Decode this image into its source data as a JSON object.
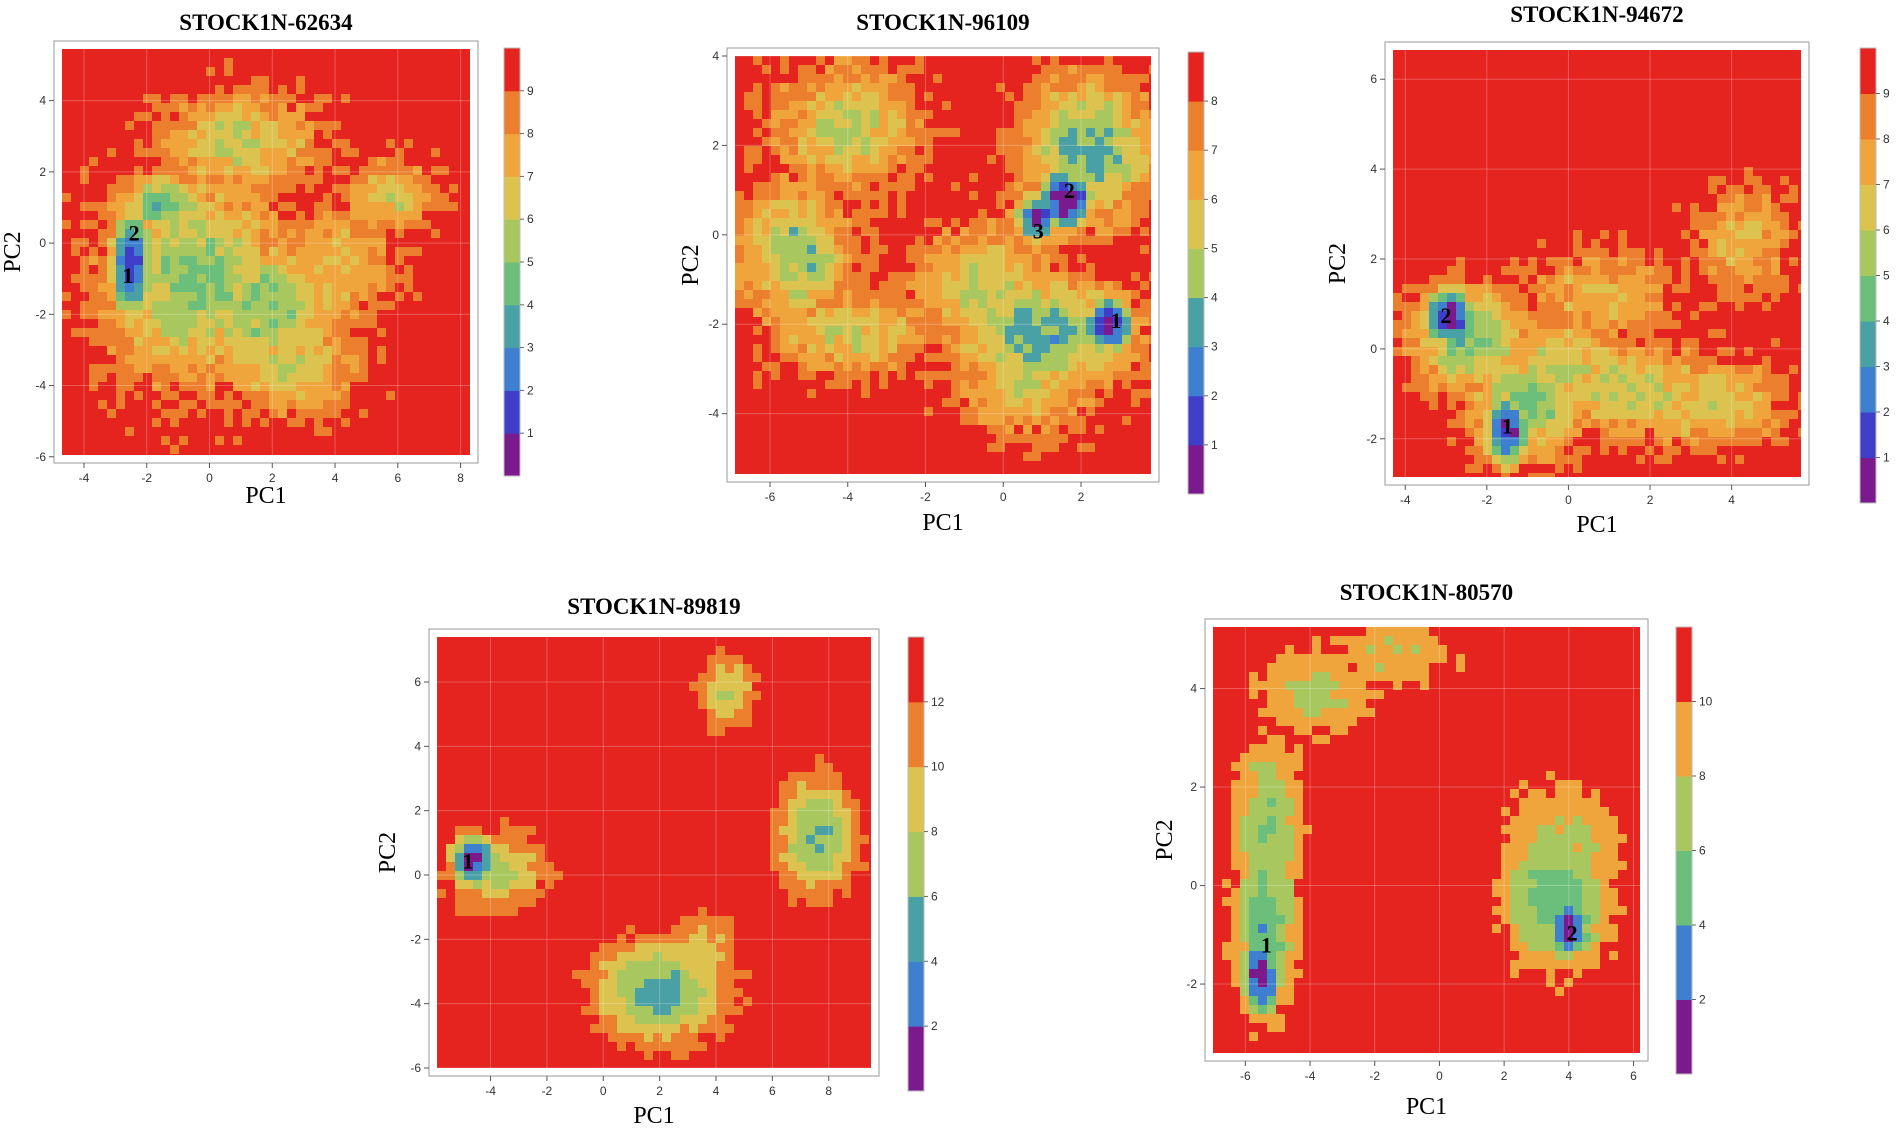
{
  "chart_data": [
    {
      "type": "heatmap",
      "title": "STOCK1N-62634",
      "xlabel": "PC1",
      "ylabel": "PC2",
      "xlim": [
        -4.7,
        8.3
      ],
      "ylim": [
        -5.95,
        5.45
      ],
      "xticks": [
        "-4",
        "-2",
        "0",
        "2",
        "4",
        "6",
        "8"
      ],
      "yticks": [
        "-6",
        "-4",
        "-2",
        "0",
        "2",
        "4"
      ],
      "colorbar": {
        "labels": [
          "1",
          "2",
          "3",
          "4",
          "5",
          "6",
          "7",
          "8",
          "9"
        ],
        "max": 10
      },
      "basins": [
        {
          "x": -2.5,
          "y": -0.6,
          "sx": 0.45,
          "sy": 1.1,
          "depth": 9.5
        },
        {
          "x": -1.5,
          "y": 1.1,
          "sx": 0.9,
          "sy": 0.6,
          "depth": 6.0
        },
        {
          "x": -0.5,
          "y": -1.0,
          "sx": 2.0,
          "sy": 2.0,
          "depth": 5.2
        },
        {
          "x": 1.8,
          "y": -1.8,
          "sx": 1.6,
          "sy": 1.4,
          "depth": 5.0
        },
        {
          "x": 2.6,
          "y": -3.4,
          "sx": 1.5,
          "sy": 1.0,
          "depth": 4.0
        },
        {
          "x": 1.0,
          "y": 2.8,
          "sx": 1.8,
          "sy": 1.0,
          "depth": 4.0
        },
        {
          "x": 5.8,
          "y": 1.3,
          "sx": 1.0,
          "sy": 0.7,
          "depth": 3.8
        },
        {
          "x": 4.2,
          "y": -0.6,
          "sx": 1.2,
          "sy": 1.2,
          "depth": 3.2
        }
      ],
      "minima": [
        {
          "label": "1",
          "x": -2.6,
          "y": -0.9
        },
        {
          "label": "2",
          "x": -2.4,
          "y": 0.3
        }
      ]
    },
    {
      "type": "heatmap",
      "title": "STOCK1N-96109",
      "xlabel": "PC1",
      "ylabel": "PC2",
      "xlim": [
        -6.9,
        3.8
      ],
      "ylim": [
        -5.35,
        4.0
      ],
      "xticks": [
        "-6",
        "-4",
        "-2",
        "0",
        "2"
      ],
      "yticks": [
        "-4",
        "-2",
        "0",
        "2",
        "4"
      ],
      "colorbar": {
        "labels": [
          "1",
          "2",
          "3",
          "4",
          "5",
          "6",
          "7",
          "8"
        ],
        "max": 9
      },
      "basins": [
        {
          "x": 2.7,
          "y": -2.0,
          "sx": 0.45,
          "sy": 0.45,
          "depth": 9.0
        },
        {
          "x": 1.6,
          "y": 0.8,
          "sx": 0.5,
          "sy": 0.5,
          "depth": 9.0
        },
        {
          "x": 0.9,
          "y": 0.4,
          "sx": 0.4,
          "sy": 0.4,
          "depth": 8.0
        },
        {
          "x": 2.2,
          "y": 1.9,
          "sx": 1.2,
          "sy": 1.1,
          "depth": 5.5
        },
        {
          "x": 1.0,
          "y": -2.2,
          "sx": 1.7,
          "sy": 0.9,
          "depth": 5.5
        },
        {
          "x": -0.5,
          "y": -1.2,
          "sx": 1.3,
          "sy": 1.0,
          "depth": 4.2
        },
        {
          "x": -5.3,
          "y": -0.4,
          "sx": 1.0,
          "sy": 1.1,
          "depth": 5.0
        },
        {
          "x": -4.0,
          "y": 2.4,
          "sx": 1.3,
          "sy": 1.0,
          "depth": 4.2
        },
        {
          "x": -4.0,
          "y": -2.2,
          "sx": 1.5,
          "sy": 0.7,
          "depth": 3.8
        },
        {
          "x": 0.6,
          "y": -3.3,
          "sx": 1.2,
          "sy": 0.8,
          "depth": 3.8
        }
      ],
      "minima": [
        {
          "label": "1",
          "x": 2.9,
          "y": -1.9
        },
        {
          "label": "2",
          "x": 1.7,
          "y": 1.0
        },
        {
          "label": "3",
          "x": 0.9,
          "y": 0.1
        }
      ]
    },
    {
      "type": "heatmap",
      "title": "STOCK1N-94672",
      "xlabel": "PC1",
      "ylabel": "PC2",
      "xlim": [
        -4.3,
        5.7
      ],
      "ylim": [
        -2.85,
        6.65
      ],
      "xticks": [
        "-4",
        "-2",
        "0",
        "2",
        "4"
      ],
      "yticks": [
        "-2",
        "0",
        "2",
        "4",
        "6"
      ],
      "colorbar": {
        "labels": [
          "1",
          "2",
          "3",
          "4",
          "5",
          "6",
          "7",
          "8",
          "9"
        ],
        "max": 10
      },
      "basins": [
        {
          "x": -2.9,
          "y": 0.7,
          "sx": 0.45,
          "sy": 0.45,
          "depth": 10.0
        },
        {
          "x": -1.5,
          "y": -1.8,
          "sx": 0.4,
          "sy": 0.55,
          "depth": 9.5
        },
        {
          "x": -2.4,
          "y": 0.2,
          "sx": 1.0,
          "sy": 0.8,
          "depth": 5.5
        },
        {
          "x": -1.0,
          "y": -1.2,
          "sx": 1.0,
          "sy": 0.8,
          "depth": 5.5
        },
        {
          "x": -0.3,
          "y": -0.5,
          "sx": 1.3,
          "sy": 0.8,
          "depth": 4.2
        },
        {
          "x": 1.5,
          "y": -0.9,
          "sx": 1.6,
          "sy": 0.7,
          "depth": 4.2
        },
        {
          "x": 3.4,
          "y": -1.2,
          "sx": 1.3,
          "sy": 0.7,
          "depth": 3.8
        },
        {
          "x": 0.8,
          "y": 1.2,
          "sx": 1.4,
          "sy": 0.7,
          "depth": 3.0
        },
        {
          "x": 4.3,
          "y": 2.4,
          "sx": 0.9,
          "sy": 0.9,
          "depth": 3.0
        }
      ],
      "minima": [
        {
          "label": "1",
          "x": -1.5,
          "y": -1.7
        },
        {
          "label": "2",
          "x": -3.0,
          "y": 0.75
        }
      ]
    },
    {
      "type": "heatmap",
      "title": "STOCK1N-89819",
      "xlabel": "PC1",
      "ylabel": "PC2",
      "xlim": [
        -5.9,
        9.5
      ],
      "ylim": [
        -6.0,
        7.4
      ],
      "xticks": [
        "-4",
        "-2",
        "0",
        "2",
        "4",
        "6",
        "8"
      ],
      "yticks": [
        "-6",
        "-4",
        "-2",
        "0",
        "2",
        "4",
        "6"
      ],
      "colorbar": {
        "labels": [
          "2",
          "4",
          "6",
          "8",
          "10",
          "12"
        ],
        "max": 14
      },
      "basins": [
        {
          "x": -4.6,
          "y": 0.5,
          "sx": 0.55,
          "sy": 0.55,
          "depth": 14.0
        },
        {
          "x": -3.8,
          "y": 0.1,
          "sx": 1.2,
          "sy": 0.9,
          "depth": 7.0
        },
        {
          "x": 2.0,
          "y": -3.6,
          "sx": 1.6,
          "sy": 1.1,
          "depth": 9.5
        },
        {
          "x": 3.5,
          "y": -2.2,
          "sx": 0.9,
          "sy": 0.8,
          "depth": 5.0
        },
        {
          "x": 7.6,
          "y": 1.2,
          "sx": 1.0,
          "sy": 1.3,
          "depth": 8.5
        },
        {
          "x": 4.4,
          "y": 5.7,
          "sx": 0.8,
          "sy": 0.8,
          "depth": 6.0
        }
      ],
      "minima": [
        {
          "label": "1",
          "x": -4.8,
          "y": 0.45
        }
      ]
    },
    {
      "type": "heatmap",
      "title": "STOCK1N-80570",
      "xlabel": "PC1",
      "ylabel": "PC2",
      "xlim": [
        -7.0,
        6.2
      ],
      "ylim": [
        -3.4,
        5.25
      ],
      "xticks": [
        "-6",
        "-4",
        "-2",
        "0",
        "2",
        "4",
        "6"
      ],
      "yticks": [
        "-2",
        "0",
        "2",
        "4"
      ],
      "colorbar": {
        "labels": [
          "2",
          "4",
          "6",
          "8",
          "10"
        ],
        "max": 12
      },
      "basins": [
        {
          "x": -5.5,
          "y": -1.8,
          "sx": 0.4,
          "sy": 0.6,
          "depth": 12.0
        },
        {
          "x": -5.4,
          "y": -0.8,
          "sx": 0.7,
          "sy": 1.3,
          "depth": 7.5
        },
        {
          "x": -5.3,
          "y": 1.3,
          "sx": 0.8,
          "sy": 1.2,
          "depth": 6.0
        },
        {
          "x": -3.8,
          "y": 3.9,
          "sx": 1.3,
          "sy": 0.6,
          "depth": 5.0
        },
        {
          "x": -1.6,
          "y": 4.7,
          "sx": 1.6,
          "sy": 0.5,
          "depth": 4.0
        },
        {
          "x": 4.0,
          "y": -0.9,
          "sx": 0.5,
          "sy": 0.4,
          "depth": 12.0
        },
        {
          "x": 3.6,
          "y": -0.3,
          "sx": 1.2,
          "sy": 1.0,
          "depth": 7.5
        },
        {
          "x": 3.8,
          "y": 0.8,
          "sx": 1.3,
          "sy": 1.0,
          "depth": 5.0
        }
      ],
      "minima": [
        {
          "label": "1",
          "x": -5.35,
          "y": -1.2
        },
        {
          "label": "2",
          "x": 4.1,
          "y": -0.95
        }
      ]
    }
  ],
  "palette": [
    "#7b1a8c",
    "#3e3ec9",
    "#3f7fcf",
    "#4aa1a5",
    "#6cbf7a",
    "#a9c75f",
    "#dcc24e",
    "#f0a43c",
    "#ec7f2e",
    "#e5231f"
  ]
}
